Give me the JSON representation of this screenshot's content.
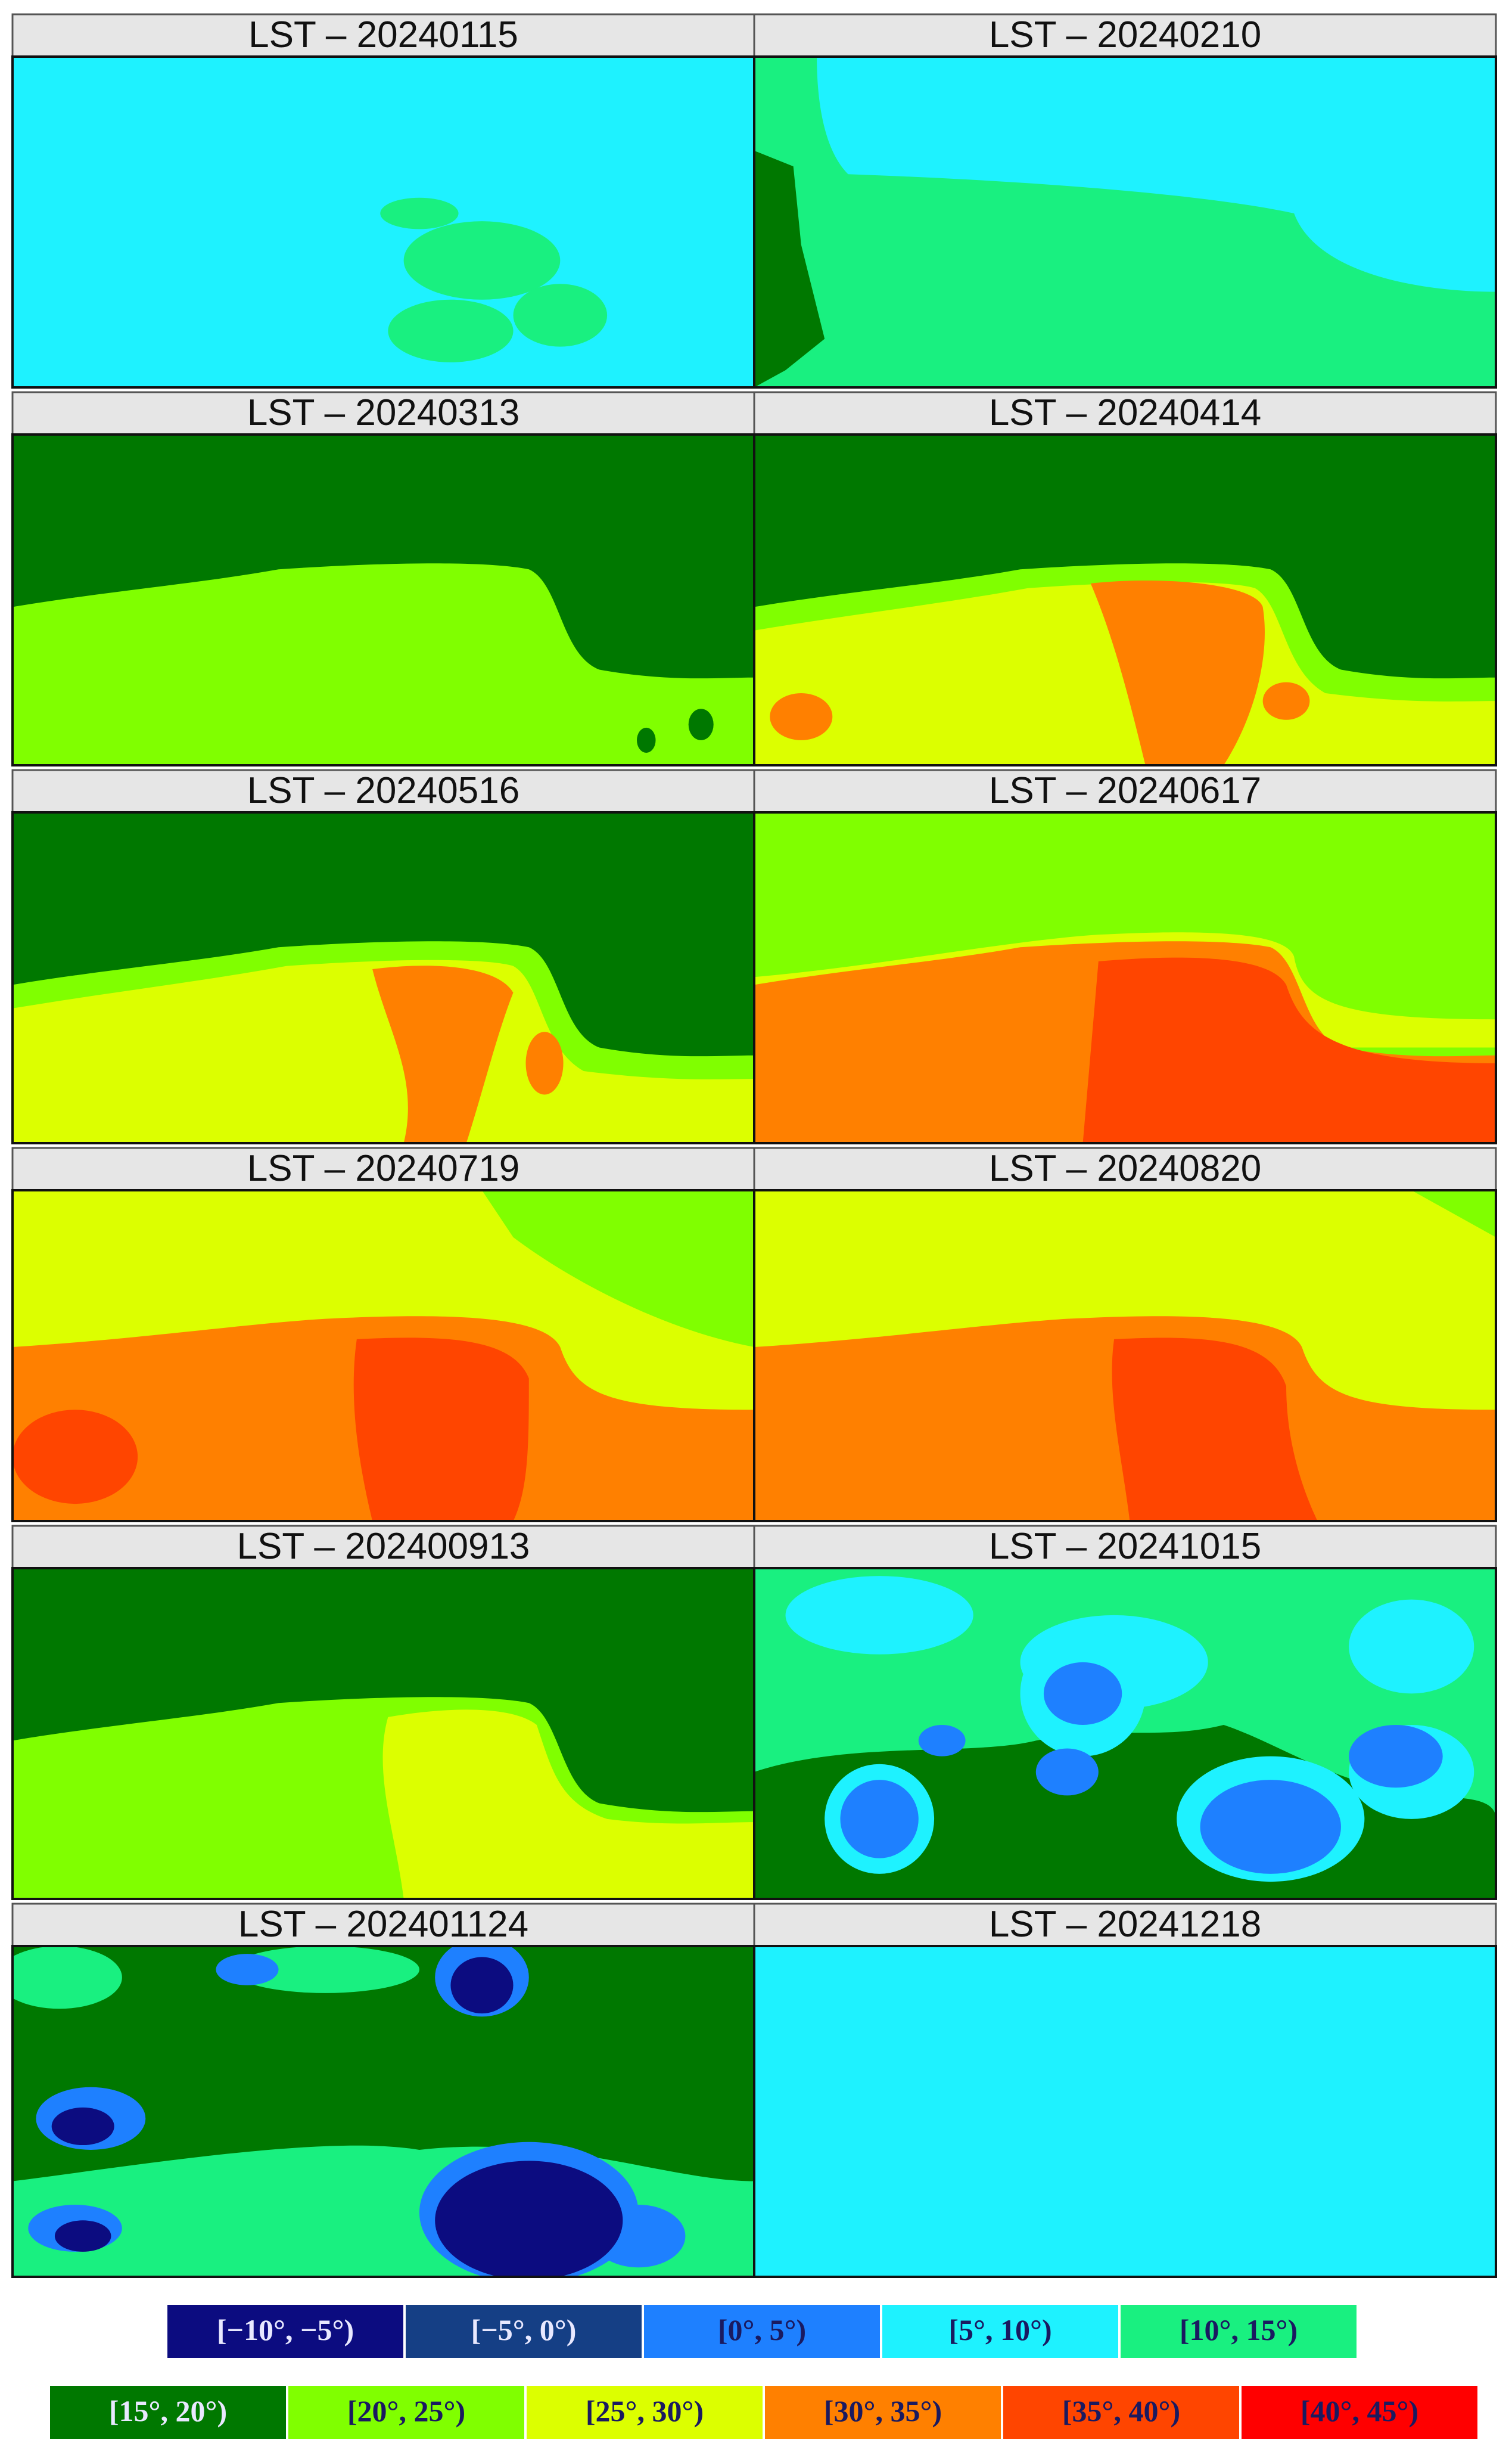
{
  "panels": [
    {
      "title": "LST – 20240115"
    },
    {
      "title": "LST – 20240210"
    },
    {
      "title": "LST – 20240313"
    },
    {
      "title": "LST – 20240414"
    },
    {
      "title": "LST – 20240516"
    },
    {
      "title": "LST – 20240617"
    },
    {
      "title": "LST – 20240719"
    },
    {
      "title": "LST – 20240820"
    },
    {
      "title": "LST – 202400913"
    },
    {
      "title": "LST – 20241015"
    },
    {
      "title": "LST – 202401124"
    },
    {
      "title": "LST – 20241218"
    }
  ],
  "legend": [
    {
      "label": "[−10°, −5°)",
      "color": "#0c0c80"
    },
    {
      "label": "[−5°, 0°)",
      "color": "#153f85"
    },
    {
      "label": "[0°, 5°)",
      "color": "#1e80ff"
    },
    {
      "label": "[5°, 10°)",
      "color": "#1ef2ff"
    },
    {
      "label": "[10°, 15°)",
      "color": "#19f080"
    },
    {
      "label": "[15°, 20°)",
      "color": "#007800"
    },
    {
      "label": "[20°, 25°)",
      "color": "#80ff00"
    },
    {
      "label": "[25°, 30°)",
      "color": "#dcff00"
    },
    {
      "label": "[30°, 35°)",
      "color": "#ff8000"
    },
    {
      "label": "[35°, 40°)",
      "color": "#ff4500"
    },
    {
      "label": "[40°, 45°)",
      "color": "#ff0000"
    }
  ]
}
